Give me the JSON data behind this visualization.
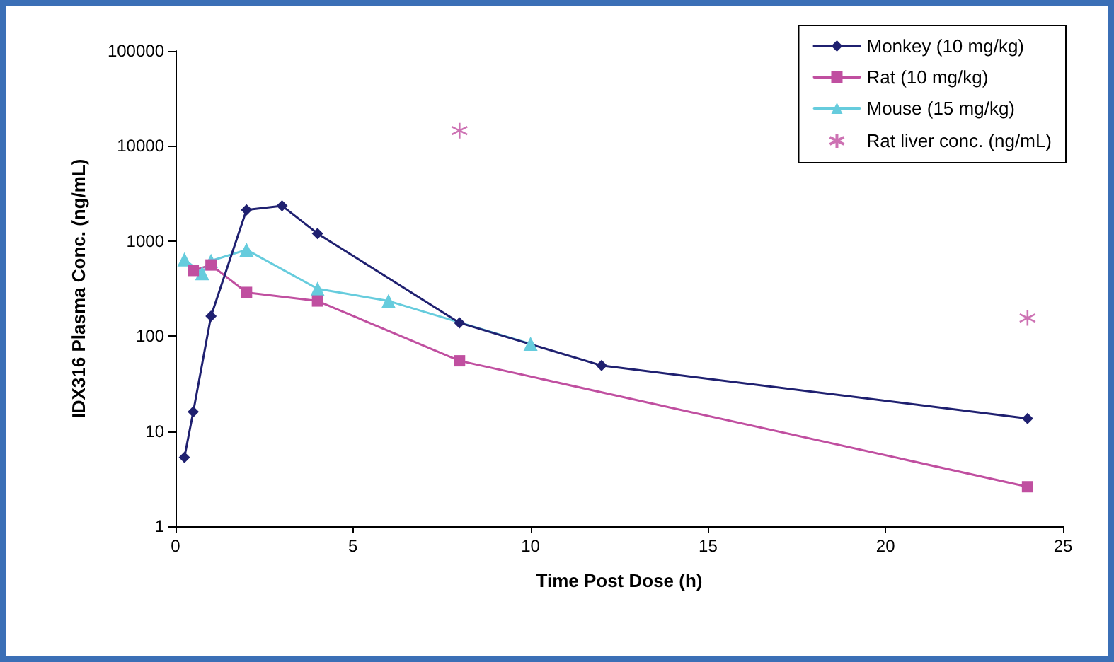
{
  "chart_data": {
    "type": "line",
    "xlabel": "Time Post Dose (h)",
    "ylabel": "IDX316 Plasma Conc. (ng/mL)",
    "log": "y",
    "grid": false,
    "legend": "top right",
    "line_style": "solid",
    "xlim": [
      0,
      25
    ],
    "xticks": [
      0,
      5,
      10,
      15,
      20,
      25
    ],
    "ylim": [
      1,
      100000
    ],
    "yticks": [
      1,
      10,
      100,
      1000,
      10000,
      100000
    ],
    "series": [
      {
        "name": "Monkey (10 mg/kg)",
        "color": "#1f2070",
        "marker": "diamond",
        "x": [
          0.25,
          0.5,
          1,
          2,
          3,
          4,
          8,
          12,
          24
        ],
        "values": [
          5.3,
          16,
          162,
          2130,
          2350,
          1200,
          138,
          49,
          13.6
        ]
      },
      {
        "name": "Rat (10 mg/kg)",
        "color": "#c04fa0",
        "marker": "square",
        "x": [
          0.5,
          1,
          2,
          4,
          8,
          24
        ],
        "values": [
          490,
          560,
          288,
          234,
          55,
          2.6
        ]
      },
      {
        "name": "Mouse (15 mg/kg)",
        "color": "#66ccdd",
        "marker": "triangle",
        "x": [
          0.25,
          0.75,
          1,
          2,
          4,
          6,
          10
        ],
        "values": [
          640,
          460,
          620,
          810,
          315,
          234,
          83
        ]
      },
      {
        "name": "Rat liver conc. (ng/mL)",
        "type": "scatter",
        "color": "#c04fa0",
        "marker": "cross",
        "x": [
          8,
          24
        ],
        "values": [
          14500,
          155
        ]
      }
    ]
  }
}
